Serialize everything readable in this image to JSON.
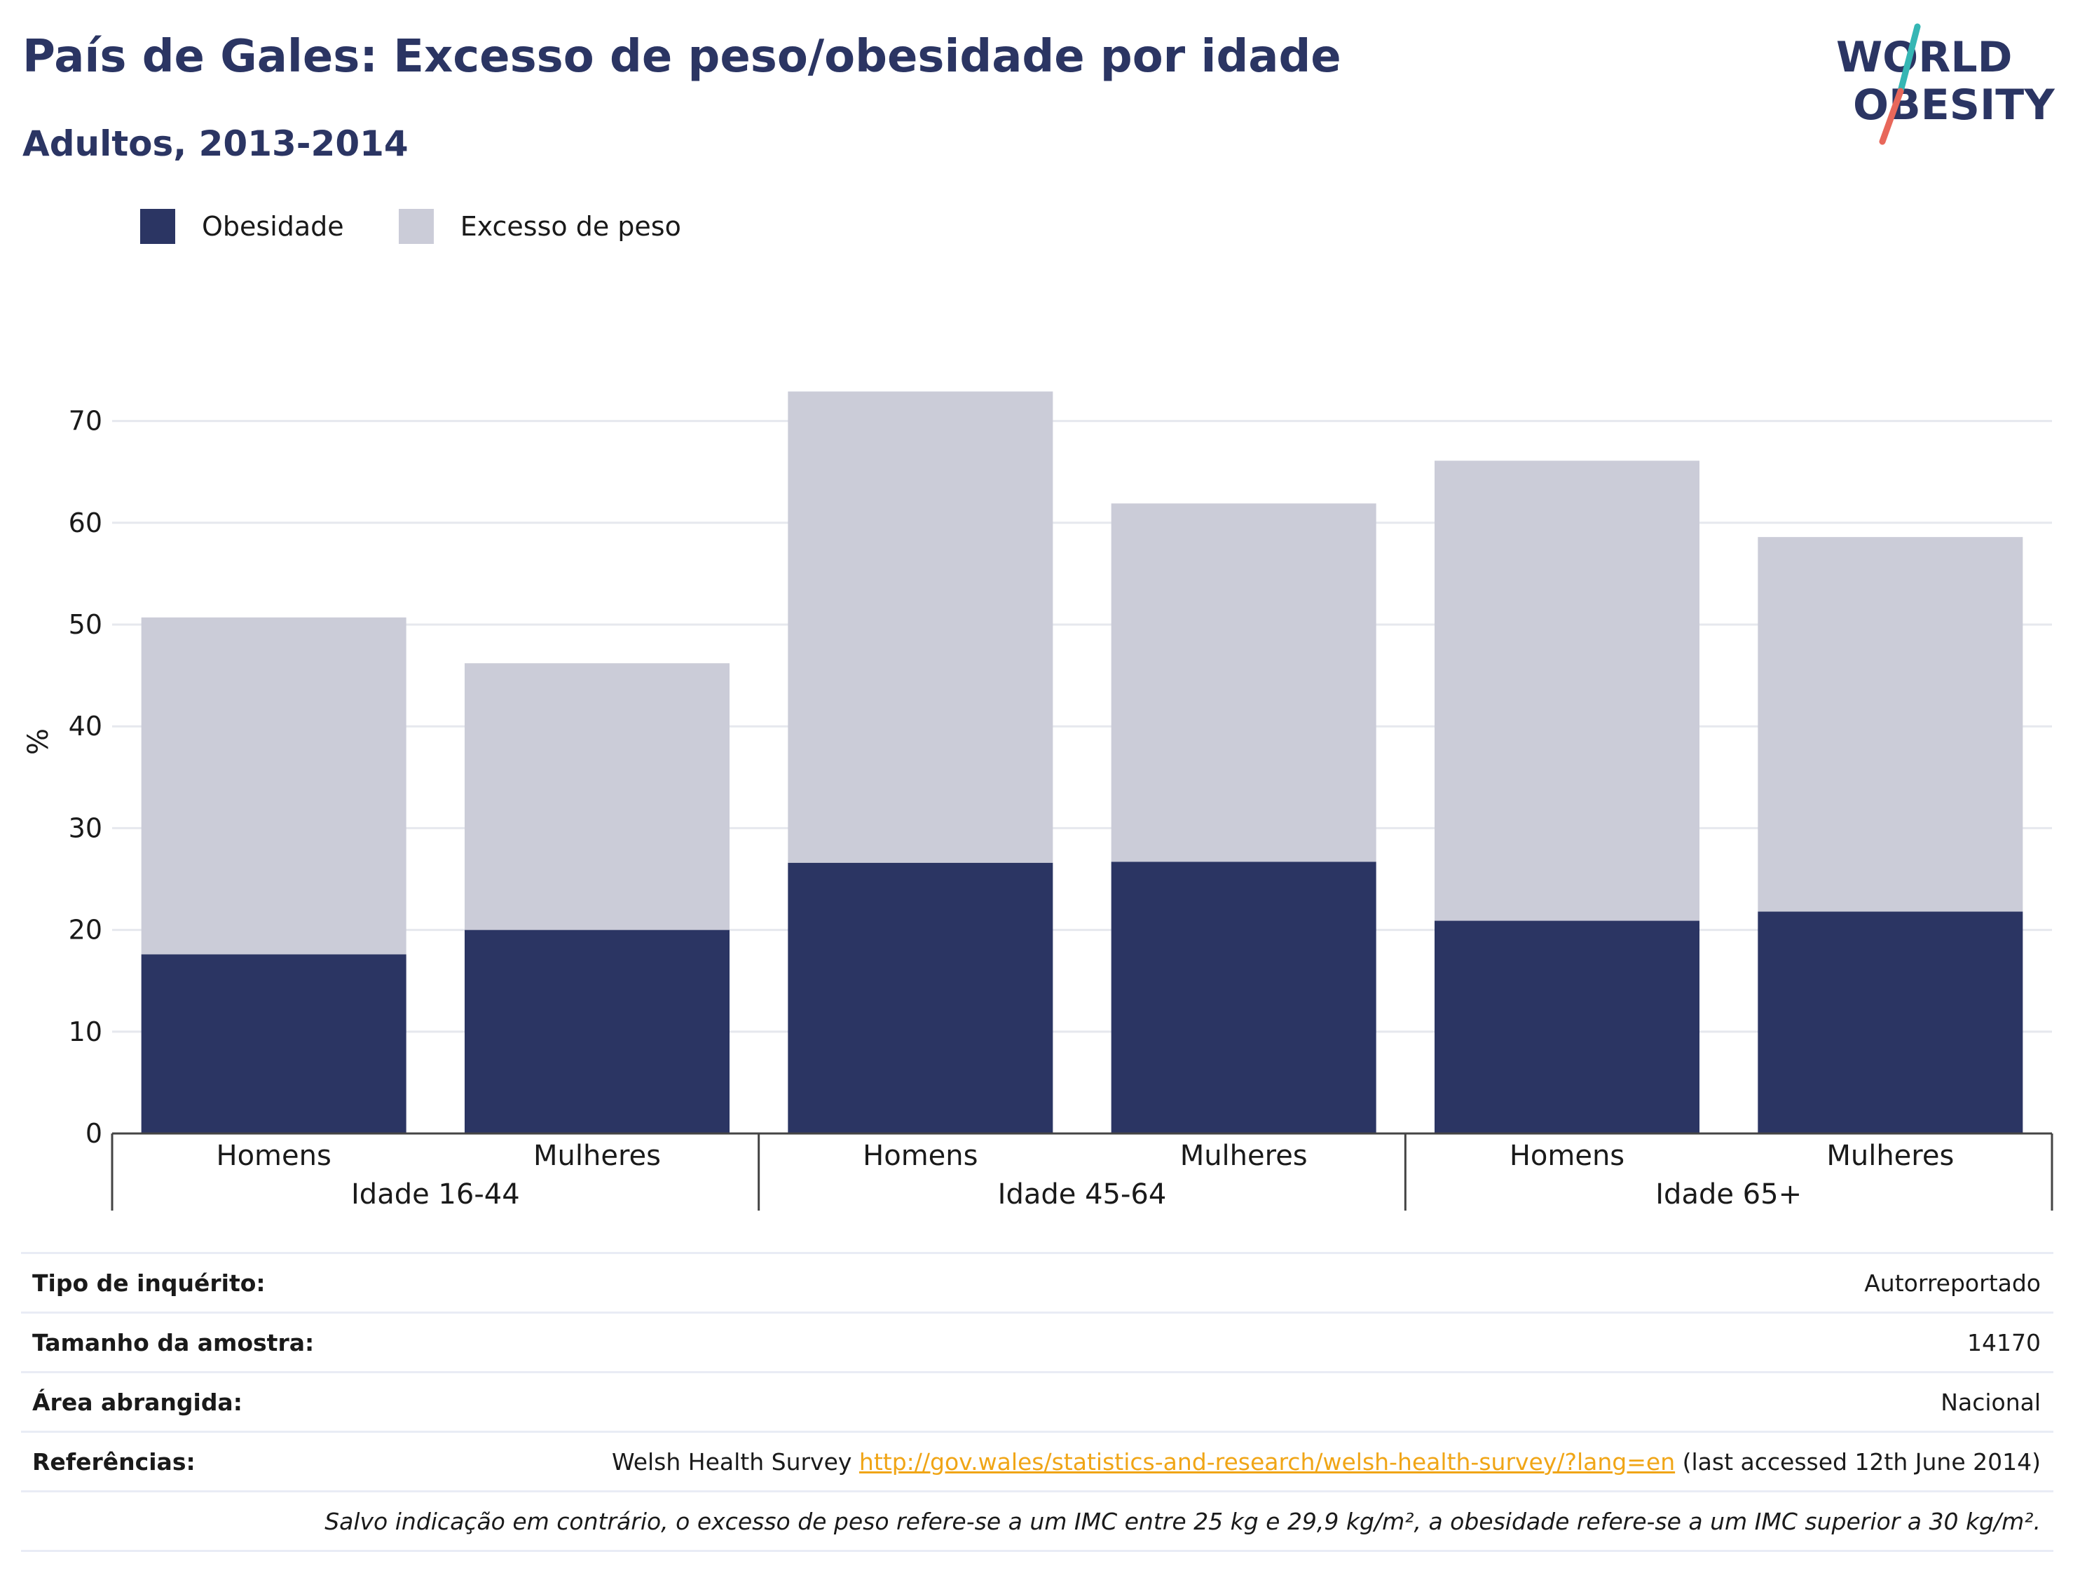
{
  "header": {
    "title": "País de Gales: Excesso de peso/obesidade por idade",
    "subtitle": "Adultos, 2013-2014"
  },
  "logo": {
    "line1": "WORLD",
    "line2": "OBESITY",
    "icon": "slash-logo-mark"
  },
  "legend": [
    {
      "label": "Obesidade",
      "color": "#2b3563"
    },
    {
      "label": "Excesso de peso",
      "color": "#cbccd8"
    }
  ],
  "chart_data": {
    "type": "bar",
    "stacked": true,
    "ylabel": "%",
    "ylim": [
      0,
      75
    ],
    "yticks": [
      0,
      10,
      20,
      30,
      40,
      50,
      60,
      70
    ],
    "grid": true,
    "legend_position": "top-left",
    "groups": [
      "Idade 16-44",
      "Idade 45-64",
      "Idade 65+"
    ],
    "categories": [
      "Homens",
      "Mulheres",
      "Homens",
      "Mulheres",
      "Homens",
      "Mulheres"
    ],
    "series": [
      {
        "name": "Obesidade",
        "color": "#2b3563",
        "values": [
          17.6,
          20.0,
          26.6,
          26.7,
          20.9,
          21.8
        ]
      },
      {
        "name": "Excesso de peso",
        "color": "#cbccd8",
        "values": [
          33.1,
          26.2,
          46.3,
          35.2,
          45.2,
          36.8
        ]
      }
    ]
  },
  "info": {
    "rows": [
      {
        "key": "Tipo de inquérito:",
        "value": "Autorreportado"
      },
      {
        "key": "Tamanho da amostra:",
        "value": "14170"
      },
      {
        "key": "Área abrangida:",
        "value": "Nacional"
      }
    ],
    "references": {
      "key": "Referências:",
      "prefix": "Welsh Health Survey ",
      "link": "http://gov.wales/statistics-and-research/welsh-health-survey/?lang=en",
      "suffix": " (last accessed 12th June 2014)"
    },
    "note": "Salvo indicação em contrário, o excesso de peso refere-se a um IMC entre 25 kg e 29,9 kg/m², a obesidade refere-se a um IMC superior a 30 kg/m²."
  }
}
